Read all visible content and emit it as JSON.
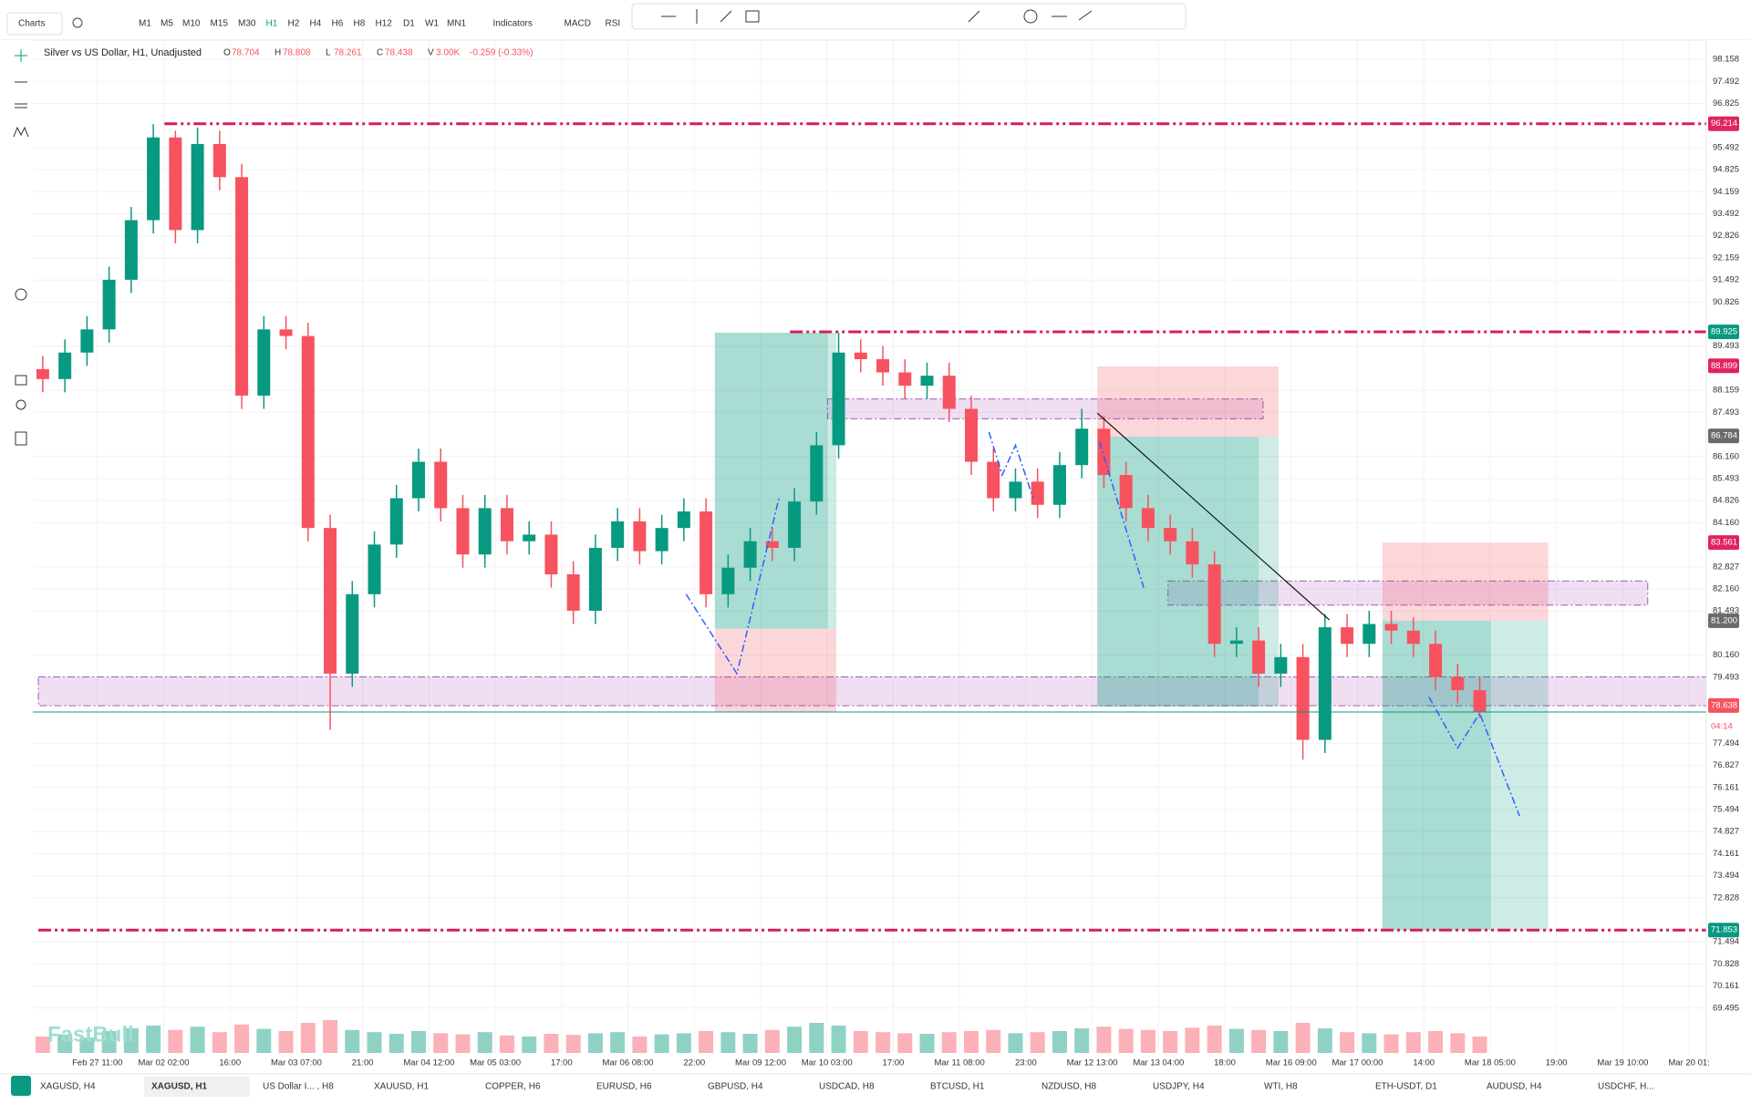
{
  "toolbar": {
    "charts": "Charts",
    "timeframes": [
      "M1",
      "M5",
      "M10",
      "M15",
      "M30",
      "H1",
      "H2",
      "H4",
      "H6",
      "H8",
      "H12",
      "D1",
      "W1",
      "MN1"
    ],
    "active_timeframe": "H1",
    "indicators": "Indicators",
    "macd": "MACD",
    "rsi": "RSI"
  },
  "header": {
    "symbol": "Silver vs US Dollar, H1, Unadjusted",
    "o_label": "O",
    "o": 78.704,
    "h_label": "H",
    "h": 78.808,
    "l_label": "L",
    "l": 78.261,
    "c_label": "C",
    "c": 78.438,
    "v_label": "V",
    "v": "3.00K",
    "change": "-0.259 (-0.33%)"
  },
  "watermark": "FastBull",
  "countdown": "04:14",
  "chart_data": {
    "type": "candlestick",
    "xlim": [
      -0.45,
      75.25
    ],
    "ylim": [
      68.14,
      98.74
    ],
    "xticks": [
      {
        "value": 2.47,
        "label": "Feb 27 11:00"
      },
      {
        "value": 5.47,
        "label": "Mar 02 02:00"
      },
      {
        "value": 8.47,
        "label": "16:00"
      },
      {
        "value": 11.47,
        "label": "Mar 03 07:00"
      },
      {
        "value": 14.47,
        "label": "21:00"
      },
      {
        "value": 17.47,
        "label": "Mar 04 12:00"
      },
      {
        "value": 20.47,
        "label": "Mar 05 03:00"
      },
      {
        "value": 23.47,
        "label": "17:00"
      },
      {
        "value": 26.47,
        "label": "Mar 06 08:00"
      },
      {
        "value": 29.47,
        "label": "22:00"
      },
      {
        "value": 32.47,
        "label": "Mar 09 12:00"
      },
      {
        "value": 35.47,
        "label": "Mar 10 03:00"
      },
      {
        "value": 38.47,
        "label": "17:00"
      },
      {
        "value": 41.47,
        "label": "Mar 11 08:00"
      },
      {
        "value": 44.47,
        "label": "23:00"
      },
      {
        "value": 47.47,
        "label": "Mar 12 13:00"
      },
      {
        "value": 50.47,
        "label": "Mar 13 04:00"
      },
      {
        "value": 53.47,
        "label": "18:00"
      },
      {
        "value": 56.47,
        "label": "Mar 16 09:00"
      },
      {
        "value": 59.47,
        "label": "Mar 17 00:00"
      },
      {
        "value": 62.47,
        "label": "14:00"
      },
      {
        "value": 65.47,
        "label": "Mar 18 05:00"
      },
      {
        "value": 68.47,
        "label": "19:00"
      },
      {
        "value": 71.47,
        "label": "Mar 19 10:00"
      },
      {
        "value": 74.47,
        "label": "Mar 20 01:"
      }
    ],
    "yticks": [
      98.158,
      97.492,
      96.825,
      95.492,
      94.825,
      94.159,
      93.492,
      92.826,
      92.159,
      91.492,
      90.826,
      89.493,
      88.159,
      87.493,
      {
        "value": 86.16,
        "label": "86.160"
      },
      85.493,
      84.826,
      {
        "value": 84.16,
        "label": "84.160"
      },
      82.827,
      {
        "value": 82.16,
        "label": "82.160"
      },
      81.493,
      {
        "value": 80.16,
        "label": "80.160"
      },
      79.493,
      77.494,
      76.827,
      76.161,
      75.494,
      74.827,
      74.161,
      73.494,
      72.828,
      71.494,
      70.828,
      70.161,
      69.495
    ],
    "grid": true,
    "up_color": "#089981",
    "down_color": "#f7525f",
    "open": [
      88.8,
      88.5,
      89.3,
      90.0,
      91.5,
      93.3,
      95.8,
      93.0,
      95.6,
      94.6,
      88.0,
      90.0,
      89.8,
      84.0,
      79.6,
      82.0,
      83.5,
      84.9,
      86.0,
      84.6,
      83.2,
      84.6,
      83.6,
      83.8,
      82.6,
      81.5,
      83.4,
      84.2,
      83.3,
      84.0,
      84.5,
      82.0,
      82.8,
      83.6,
      83.4,
      84.8,
      86.5,
      89.3,
      89.1,
      88.7,
      88.3,
      88.6,
      87.6,
      86.0,
      84.9,
      85.4,
      84.7,
      85.9,
      87.0,
      85.6,
      84.6,
      84.0,
      83.6,
      82.9,
      80.5,
      80.6,
      79.6,
      80.1,
      77.6,
      81.0,
      80.5,
      81.1,
      80.9,
      80.5,
      79.5,
      79.1
    ],
    "high": [
      89.2,
      89.7,
      90.4,
      91.9,
      93.7,
      96.2,
      96.0,
      96.1,
      96.0,
      95.0,
      90.4,
      90.4,
      90.2,
      84.4,
      82.4,
      83.9,
      85.3,
      86.4,
      86.4,
      85.0,
      85.0,
      85.0,
      84.2,
      84.2,
      83.0,
      83.8,
      84.6,
      84.6,
      84.4,
      84.9,
      84.9,
      83.2,
      84.0,
      84.0,
      85.2,
      86.9,
      89.9,
      89.7,
      89.5,
      89.1,
      89.0,
      89.0,
      88.0,
      86.4,
      85.8,
      85.8,
      86.3,
      87.6,
      87.4,
      86.0,
      85.0,
      84.4,
      84.0,
      83.3,
      81.0,
      81.0,
      80.5,
      80.5,
      81.4,
      81.4,
      81.5,
      81.5,
      81.3,
      80.9,
      79.9,
      79.5
    ],
    "low": [
      88.1,
      88.1,
      88.9,
      89.6,
      91.1,
      92.9,
      92.6,
      92.6,
      94.2,
      87.6,
      87.6,
      89.4,
      83.6,
      77.9,
      79.2,
      81.6,
      83.1,
      84.5,
      84.2,
      82.8,
      82.8,
      83.2,
      83.2,
      82.2,
      81.1,
      81.1,
      83.0,
      82.9,
      82.9,
      83.6,
      81.6,
      81.6,
      82.4,
      83.0,
      83.0,
      84.4,
      86.1,
      88.7,
      88.3,
      87.9,
      87.9,
      87.2,
      85.6,
      84.5,
      84.5,
      84.3,
      84.3,
      85.5,
      85.2,
      84.2,
      83.6,
      83.2,
      82.5,
      80.1,
      80.1,
      79.2,
      79.2,
      77.0,
      77.2,
      80.1,
      80.1,
      80.5,
      80.1,
      79.1,
      78.7,
      78.26
    ],
    "close": [
      88.5,
      89.3,
      90.0,
      91.5,
      93.3,
      95.8,
      93.0,
      95.6,
      94.6,
      88.0,
      90.0,
      89.8,
      84.0,
      79.6,
      82.0,
      83.5,
      84.9,
      86.0,
      84.6,
      83.2,
      84.6,
      83.6,
      83.8,
      82.6,
      81.5,
      83.4,
      84.2,
      83.3,
      84.0,
      84.5,
      82.0,
      82.8,
      83.6,
      83.4,
      84.8,
      86.5,
      89.3,
      89.1,
      88.7,
      88.3,
      88.6,
      87.6,
      86.0,
      84.9,
      85.4,
      84.7,
      85.9,
      87.0,
      85.6,
      84.6,
      84.0,
      83.6,
      82.9,
      80.5,
      80.6,
      79.6,
      80.1,
      77.6,
      81.0,
      80.5,
      81.1,
      80.9,
      80.5,
      79.5,
      79.1,
      78.44
    ],
    "volume": [
      30,
      34,
      28,
      40,
      45,
      50,
      42,
      48,
      38,
      52,
      44,
      40,
      55,
      60,
      42,
      38,
      35,
      40,
      36,
      34,
      38,
      32,
      30,
      35,
      33,
      36,
      38,
      30,
      34,
      36,
      40,
      38,
      35,
      42,
      48,
      55,
      50,
      40,
      38,
      36,
      35,
      38,
      40,
      42,
      36,
      38,
      40,
      45,
      48,
      44,
      42,
      40,
      46,
      50,
      44,
      42,
      40,
      55,
      45,
      38,
      36,
      34,
      38,
      40,
      36,
      30
    ],
    "price_tags": [
      {
        "value": 96.214,
        "color": "#e0245e"
      },
      {
        "value": 89.925,
        "color": "#089981"
      },
      {
        "value": 88.899,
        "color": "#e0245e"
      },
      {
        "value": 86.784,
        "color": "#6b6b6b"
      },
      {
        "value": 83.561,
        "color": "#e0245e"
      },
      {
        "value": 81.2,
        "label": "81.200",
        "color": "#6b6b6b"
      },
      {
        "value": 78.638,
        "color": "#f7525f"
      },
      {
        "value": 71.853,
        "color": "#089981"
      }
    ],
    "hlines": [
      {
        "price": 96.214,
        "x0": 5.5
      },
      {
        "price": 89.925,
        "x0": 33.8
      },
      {
        "price": 71.853,
        "x0": -0.2
      }
    ],
    "zones": [
      {
        "x0": -0.2,
        "x1": 75.25,
        "top": 79.5,
        "bottom": 78.63
      },
      {
        "x0": 35.5,
        "x1": 55.2,
        "top": 87.9,
        "bottom": 87.3
      },
      {
        "x0": 50.9,
        "x1": 72.6,
        "top": 82.4,
        "bottom": 81.67
      }
    ],
    "positions": [
      {
        "x0": 30.4,
        "x1": 35.9,
        "inner": 35.5,
        "entry": 80.96,
        "target": 89.9,
        "stop": 78.43
      },
      {
        "x0": 47.7,
        "x1": 55.9,
        "inner": 55.0,
        "entry": 86.76,
        "target": 78.6,
        "stop": 88.88
      },
      {
        "x0": 60.6,
        "x1": 68.1,
        "inner": 65.5,
        "entry": 81.2,
        "target": 71.85,
        "stop": 83.56
      }
    ],
    "trendline": {
      "x0": 47.7,
      "p0": 87.47,
      "x1": 58.2,
      "p1": 81.22
    },
    "paths": [
      [
        [
          29.1,
          82.0
        ],
        [
          31.4,
          79.6
        ],
        [
          33.3,
          84.9
        ]
      ],
      [
        [
          42.8,
          86.9
        ],
        [
          43.4,
          85.6
        ],
        [
          44.0,
          86.5
        ],
        [
          44.8,
          84.9
        ]
      ],
      [
        [
          47.8,
          86.6
        ],
        [
          49.8,
          82.2
        ]
      ],
      [
        [
          62.7,
          78.9
        ],
        [
          64.0,
          77.35
        ],
        [
          65.0,
          78.4
        ],
        [
          66.8,
          75.3
        ]
      ]
    ]
  },
  "tabs": [
    "XAGUSD, H4",
    "XAGUSD, H1",
    "US Dollar I... , H8",
    "XAUUSD, H1",
    "COPPER, H6",
    "EURUSD, H6",
    "GBPUSD, H4",
    "USDCAD, H8",
    "BTCUSD, H1",
    "NZDUSD, H8",
    "USDJPY, H4",
    "WTI, H8",
    "ETH-USDT, D1",
    "AUDUSD, H4",
    "USDCHF, H..."
  ],
  "active_tab": 1
}
